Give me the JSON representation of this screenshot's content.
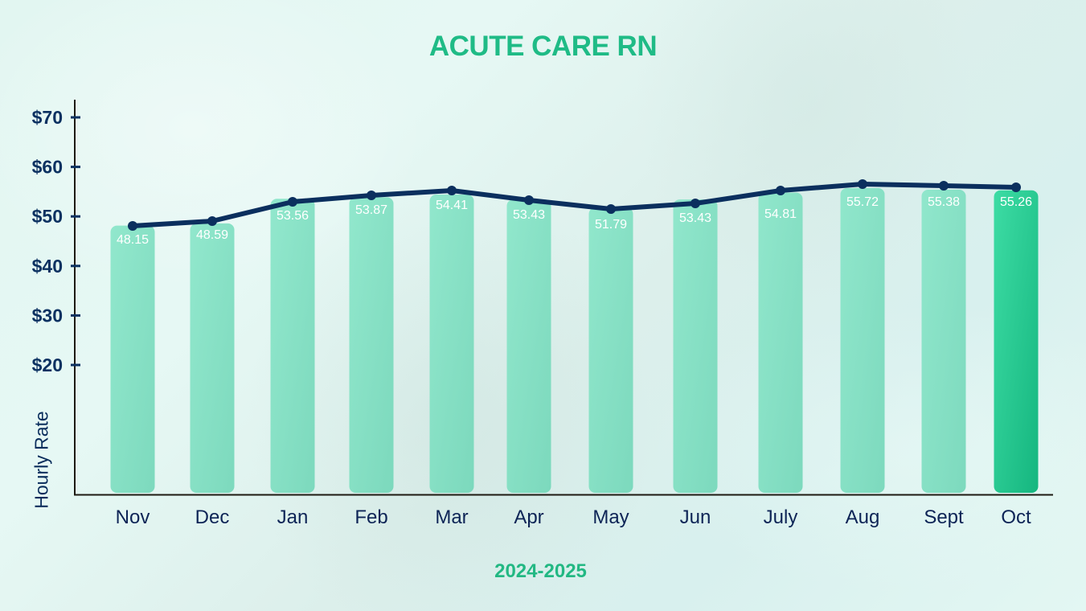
{
  "chart_data": {
    "type": "bar",
    "title": "ACUTE CARE RN",
    "xlabel": "2024-2025",
    "ylabel": "Hourly Rate",
    "categories": [
      "Nov",
      "Dec",
      "Jan",
      "Feb",
      "Mar",
      "Apr",
      "May",
      "Jun",
      "July",
      "Aug",
      "Sept",
      "Oct"
    ],
    "series": [
      {
        "name": "Hourly Rate (bars)",
        "type": "bar",
        "values": [
          48.15,
          48.59,
          53.56,
          53.87,
          54.41,
          53.43,
          51.79,
          53.43,
          54.81,
          55.72,
          55.38,
          55.26
        ],
        "color": "#84e1c3",
        "highlight_index": 11,
        "highlight_color": "#2fcf98"
      },
      {
        "name": "Hourly Rate (trend line)",
        "type": "line",
        "values": [
          48.15,
          48.59,
          53.56,
          53.87,
          54.41,
          53.43,
          51.79,
          53.43,
          54.81,
          55.72,
          55.38,
          55.26
        ],
        "color": "#0b2f5e"
      }
    ],
    "data_labels": [
      "48.15",
      "48.59",
      "53.56",
      "53.87",
      "54.41",
      "53.43",
      "51.79",
      "53.43",
      "54.81",
      "55.72",
      "55.38",
      "55.26"
    ],
    "yticks": [
      20,
      30,
      40,
      50,
      60,
      70
    ],
    "ytick_labels": [
      "$20",
      "$30",
      "$40",
      "$50",
      "$60",
      "$70"
    ],
    "ylim": [
      0,
      72
    ],
    "grid": false,
    "legend": "none"
  },
  "colors": {
    "title": "#1fbb86",
    "axis_text": "#0b3161",
    "axis_line": "#1e1a12",
    "bar": "#84e1c3",
    "bar_highlight": "#2fcf98",
    "line": "#0b2f5e"
  }
}
